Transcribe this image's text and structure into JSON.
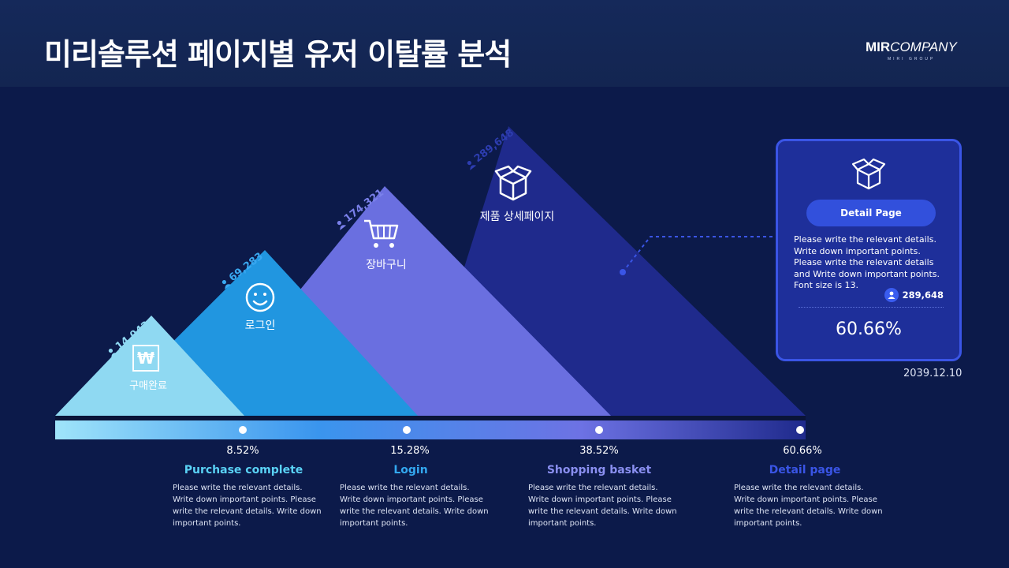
{
  "header": {
    "title": "미리솔루션 페이지별 유저 이탈률 분석"
  },
  "logo": {
    "bold": "MIR",
    "rest": "COMPANY",
    "sub": "MIRI GROUP"
  },
  "stages": [
    {
      "key": "purchase",
      "label": "구매완료",
      "count": "14,042",
      "pct": "8.52%",
      "title": "Purchase complete",
      "desc": "Please write the relevant details. Write down important points. Please write the relevant details. Write down important points.",
      "color": "#8fd9f2",
      "title_color": "#5ad2f5",
      "icon": "won-icon"
    },
    {
      "key": "login",
      "label": "로그인",
      "count": "69,283",
      "pct": "15.28%",
      "title": "Login",
      "desc": "Please write the relevant details. Write down important points. Please write the relevant details. Write down important points.",
      "color": "#2196e0",
      "title_color": "#33a8f0",
      "icon": "smiley-icon"
    },
    {
      "key": "basket",
      "label": "장바구니",
      "count": "174,321",
      "pct": "38.52%",
      "title": "Shopping basket",
      "desc": "Please write the relevant details. Write down important points. Please write the relevant details. Write down important points.",
      "color": "#6a6fe0",
      "title_color": "#8a8ff0",
      "icon": "cart-icon"
    },
    {
      "key": "detail",
      "label": "제품 상세페이지",
      "count": "289,648",
      "pct": "60.66%",
      "title": "Detail page",
      "desc": "Please write the relevant details. Write down important points. Please write the relevant details. Write down important points.",
      "color": "#1f2a8c",
      "title_color": "#3a55e6",
      "icon": "box-icon"
    }
  ],
  "card": {
    "button": "Detail Page",
    "desc": "Please write the relevant details. Write down important points. Please write the relevant details and Write down important points. Font size is 13.",
    "count": "289,648",
    "pct": "60.66%",
    "icon": "box-icon"
  },
  "date": "2039.12.10"
}
